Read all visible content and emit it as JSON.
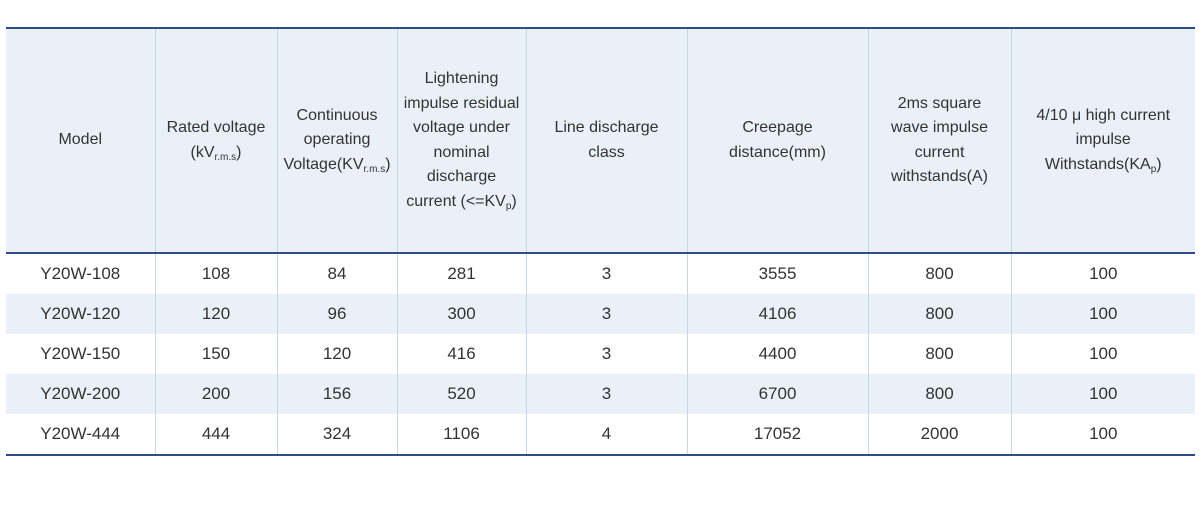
{
  "table": {
    "headers": [
      {
        "text": "Model"
      },
      {
        "text": "Rated voltage (kV",
        "sub": "r.m.s",
        "after": ")"
      },
      {
        "text": "Continuous operating Voltage(KV",
        "sub": "r.m.s",
        "after": ")"
      },
      {
        "text": "Lightening impulse residual voltage under nominal discharge current (<=KV",
        "sub": "p",
        "after": ")"
      },
      {
        "text": "Line discharge class"
      },
      {
        "text": "Creepage distance(mm)"
      },
      {
        "text": "2ms square wave impulse current withstands(A)"
      },
      {
        "text": "4/10 μ high current impulse Withstands(KA",
        "sub": "p",
        "after": ")"
      }
    ],
    "rows": [
      [
        "Y20W-108",
        "108",
        "84",
        "281",
        "3",
        "3555",
        "800",
        "100"
      ],
      [
        "Y20W-120",
        "120",
        "96",
        "300",
        "3",
        "4106",
        "800",
        "100"
      ],
      [
        "Y20W-150",
        "150",
        "120",
        "416",
        "3",
        "4400",
        "800",
        "100"
      ],
      [
        "Y20W-200",
        "200",
        "156",
        "520",
        "3",
        "6700",
        "800",
        "100"
      ],
      [
        "Y20W-444",
        "444",
        "324",
        "1106",
        "4",
        "17052",
        "2000",
        "100"
      ]
    ]
  }
}
